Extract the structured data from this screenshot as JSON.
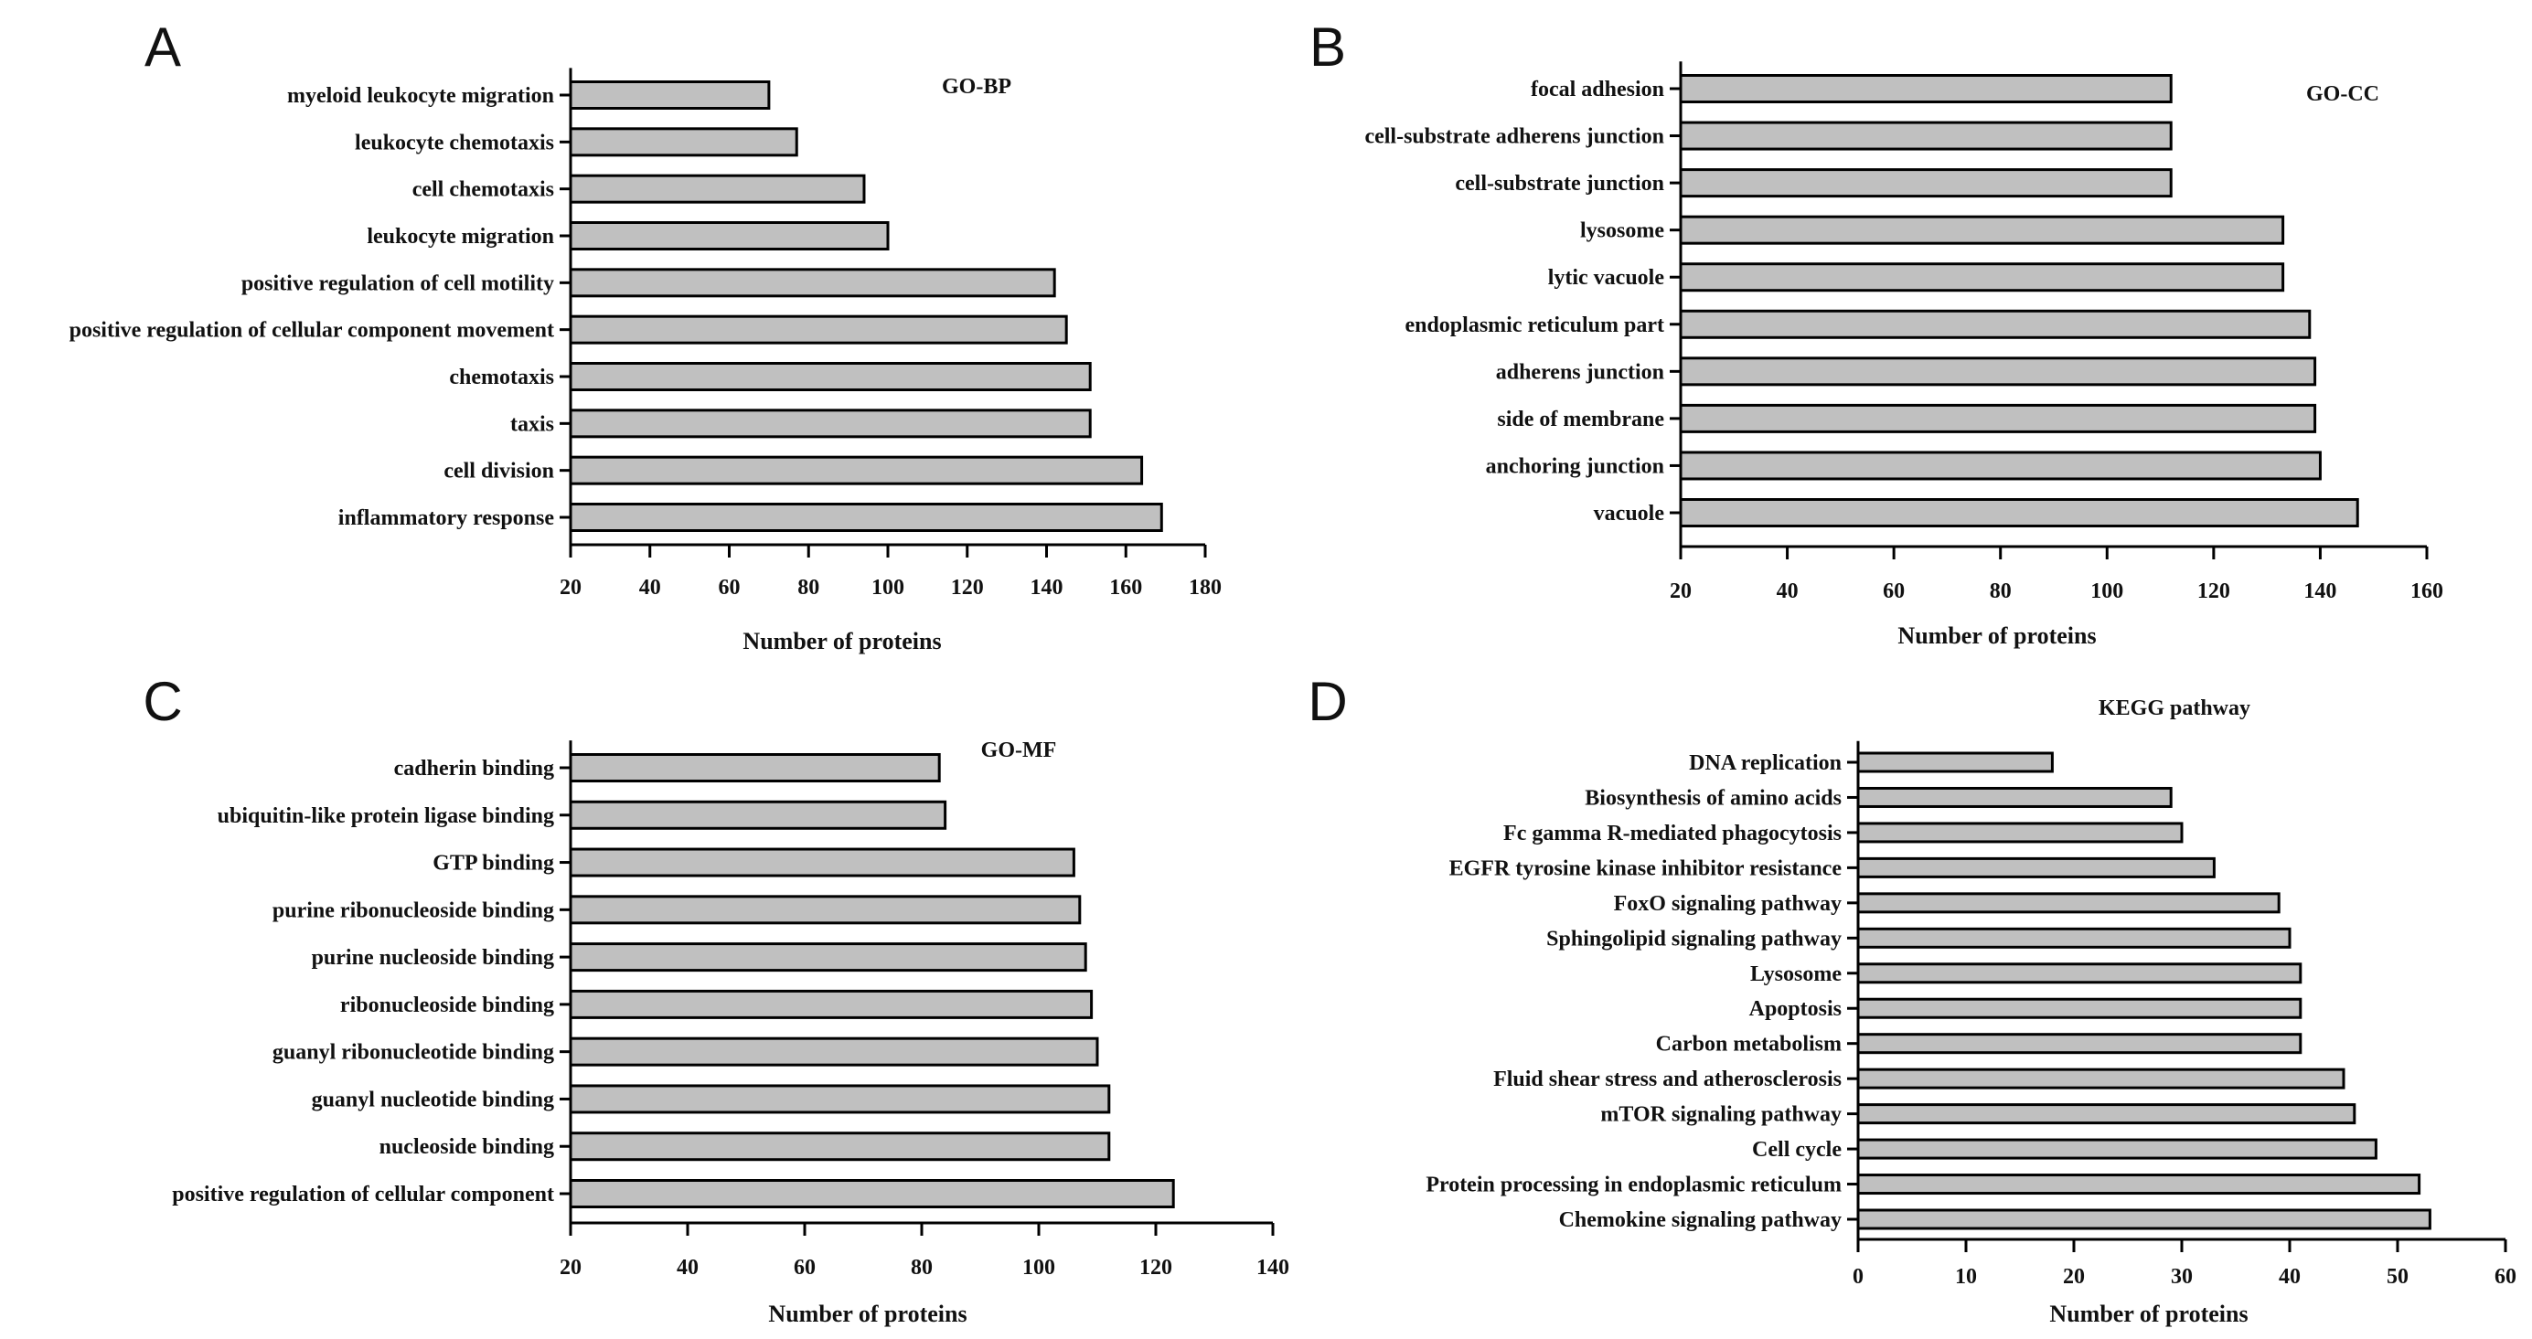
{
  "figure": {
    "bar_fill": "#c0c0c0",
    "bar_stroke": "#000000"
  },
  "chart_data": [
    {
      "panel": "A",
      "type": "bar",
      "orientation": "horizontal",
      "title": "GO-BP",
      "xlabel": "Number of proteins",
      "ylabel": "",
      "xlim": [
        20,
        180
      ],
      "xticks": [
        20,
        40,
        60,
        80,
        100,
        120,
        140,
        160,
        180
      ],
      "categories": [
        "myeloid leukocyte migration",
        "leukocyte chemotaxis",
        "cell chemotaxis",
        "leukocyte migration",
        "positive regulation of cell motility",
        "positive regulation of cellular component movement",
        "chemotaxis",
        "taxis",
        "cell division",
        "inflammatory response"
      ],
      "values": [
        70,
        77,
        94,
        100,
        142,
        145,
        151,
        151,
        164,
        169
      ]
    },
    {
      "panel": "B",
      "type": "bar",
      "orientation": "horizontal",
      "title": "GO-CC",
      "xlabel": "Number of proteins",
      "ylabel": "",
      "xlim": [
        20,
        160
      ],
      "xticks": [
        20,
        40,
        60,
        80,
        100,
        120,
        140,
        160
      ],
      "categories": [
        "focal adhesion",
        "cell-substrate adherens junction",
        "cell-substrate junction",
        "lysosome",
        "lytic vacuole",
        "endoplasmic reticulum part",
        "adherens junction",
        "side of membrane",
        "anchoring junction",
        "vacuole"
      ],
      "values": [
        112,
        112,
        112,
        133,
        133,
        138,
        139,
        139,
        140,
        147
      ]
    },
    {
      "panel": "C",
      "type": "bar",
      "orientation": "horizontal",
      "title": "GO-MF",
      "xlabel": "Number of proteins",
      "ylabel": "",
      "xlim": [
        20,
        140
      ],
      "xticks": [
        20,
        40,
        60,
        80,
        100,
        120,
        140
      ],
      "categories": [
        "cadherin binding",
        "ubiquitin-like protein ligase binding",
        "GTP binding",
        "purine ribonucleoside binding",
        "purine nucleoside binding",
        "ribonucleoside binding",
        "guanyl ribonucleotide binding",
        "guanyl nucleotide binding",
        "nucleoside binding",
        "positive regulation of cellular component"
      ],
      "values": [
        83,
        84,
        106,
        107,
        108,
        109,
        110,
        112,
        112,
        123
      ]
    },
    {
      "panel": "D",
      "type": "bar",
      "orientation": "horizontal",
      "title": "KEGG pathway",
      "xlabel": "Number of proteins",
      "ylabel": "",
      "xlim": [
        0,
        60
      ],
      "xticks": [
        0,
        10,
        20,
        30,
        40,
        50,
        60
      ],
      "categories": [
        "DNA replication",
        "Biosynthesis of amino acids",
        "Fc gamma R-mediated phagocytosis",
        "EGFR tyrosine kinase inhibitor resistance",
        "FoxO signaling pathway",
        "Sphingolipid signaling pathway",
        "Lysosome",
        "Apoptosis",
        "Carbon metabolism",
        "Fluid shear stress and atherosclerosis",
        "mTOR signaling pathway",
        "Cell cycle",
        "Protein processing in endoplasmic reticulum",
        "Chemokine signaling pathway"
      ],
      "values": [
        18,
        29,
        30,
        33,
        39,
        40,
        41,
        41,
        41,
        45,
        46,
        48,
        52,
        53
      ]
    }
  ]
}
